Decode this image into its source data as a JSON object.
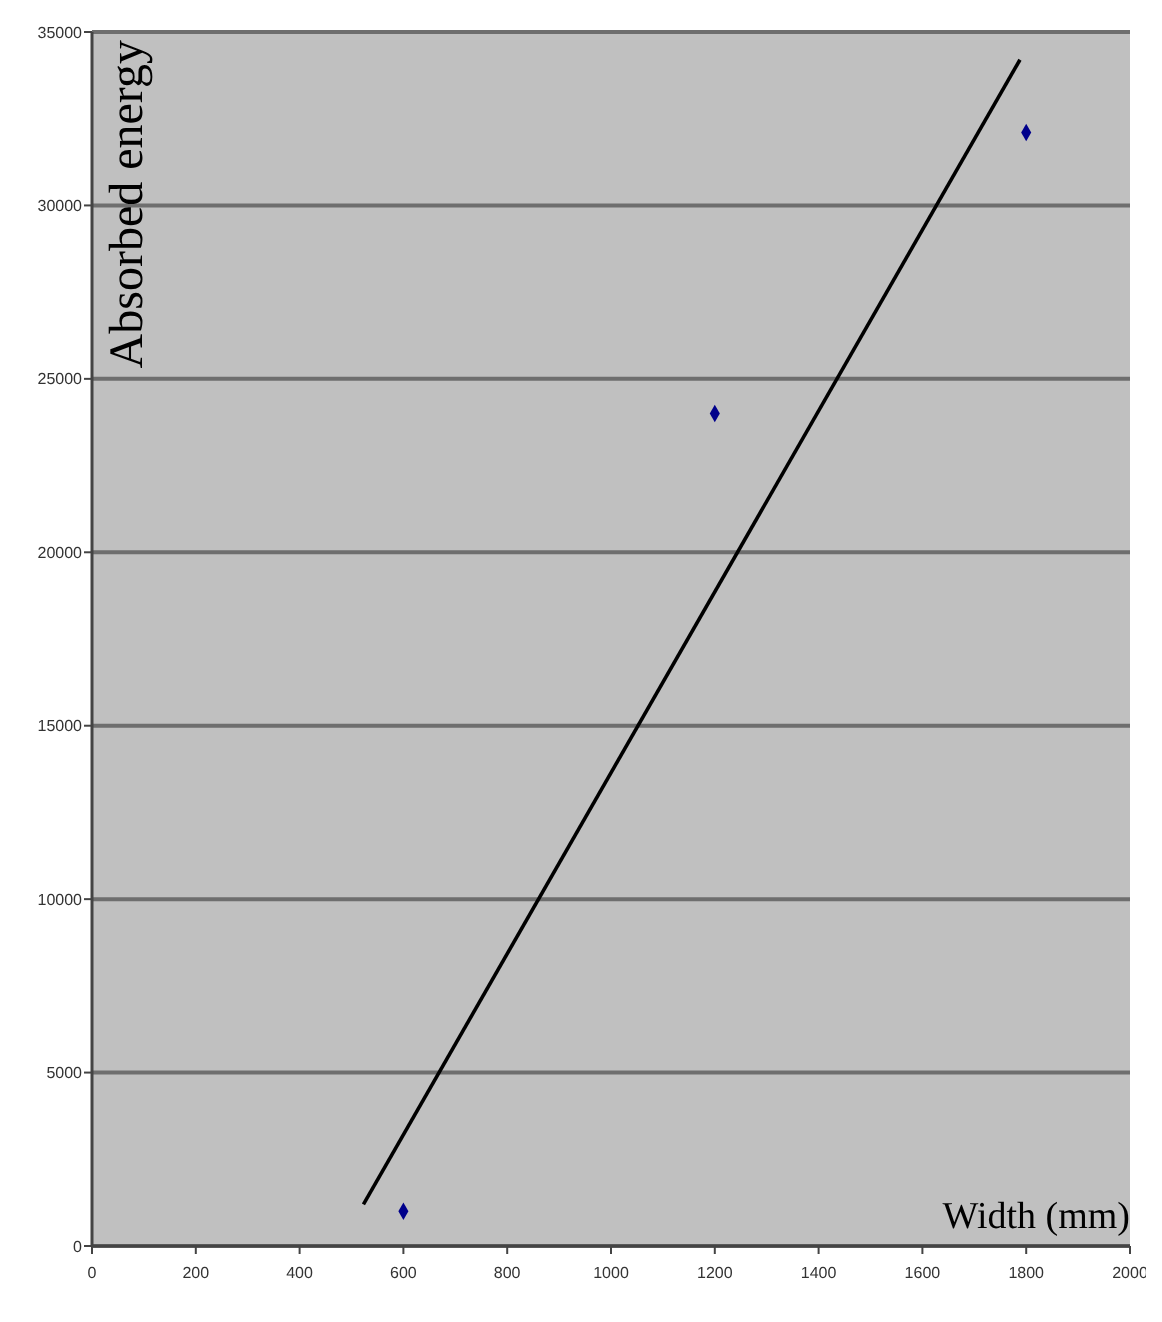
{
  "chart_data": {
    "type": "scatter",
    "xlabel": "Width (mm)",
    "ylabel": "Absorbed energy",
    "series": [
      {
        "color": "#00008b",
        "x": [
          600,
          1200,
          1800
        ],
        "values": [
          1000,
          24000,
          32100
        ],
        "marker": "diamond"
      },
      {
        "type": "line",
        "color": "#000000",
        "x": [
          523,
          1788
        ],
        "values": [
          1200,
          34200
        ],
        "marker": "none",
        "line_style": "solid"
      }
    ],
    "xlim": [
      0,
      2000
    ],
    "xticks": [
      0,
      200,
      400,
      600,
      800,
      1000,
      1200,
      1400,
      1600,
      1800,
      2000
    ],
    "ylim": [
      0,
      35000
    ],
    "yticks": [
      0,
      5000,
      10000,
      15000,
      20000,
      25000,
      30000,
      35000
    ],
    "grid": "y"
  }
}
